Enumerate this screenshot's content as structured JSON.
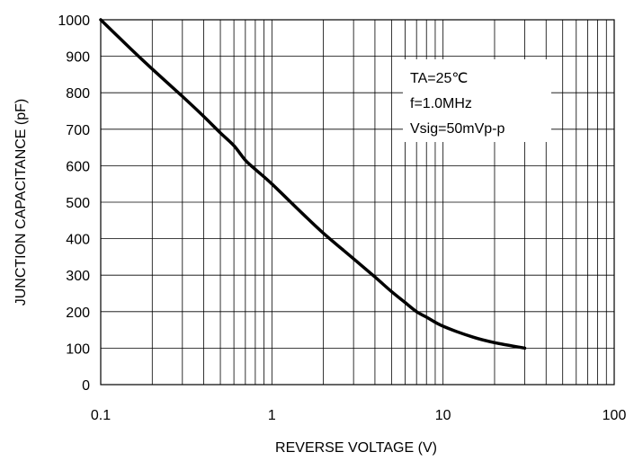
{
  "chart_data": {
    "type": "line",
    "x_scale": "log",
    "xlabel": "REVERSE VOLTAGE (V)",
    "ylabel": "JUNCTION CAPACITANCE (pF)",
    "xlim": [
      0.1,
      100
    ],
    "ylim": [
      0,
      1000
    ],
    "grid": true,
    "x_ticks": [
      "0.1",
      "1",
      "10",
      "100"
    ],
    "y_ticks": [
      "0",
      "100",
      "200",
      "300",
      "400",
      "500",
      "600",
      "700",
      "800",
      "900",
      "1000"
    ],
    "annotation": [
      "TA=25℃",
      "f=1.0MHz",
      "Vsig=50mVp-p"
    ],
    "series": [
      {
        "x": [
          0.1,
          0.15,
          0.2,
          0.3,
          0.4,
          0.5,
          0.6,
          0.7,
          0.8,
          1,
          1.5,
          2,
          3,
          4,
          5,
          6,
          7,
          8,
          10,
          15,
          20,
          30
        ],
        "y": [
          1000,
          920,
          865,
          790,
          735,
          690,
          655,
          615,
          590,
          550,
          470,
          415,
          345,
          295,
          255,
          225,
          200,
          185,
          160,
          130,
          115,
          100
        ]
      }
    ]
  }
}
